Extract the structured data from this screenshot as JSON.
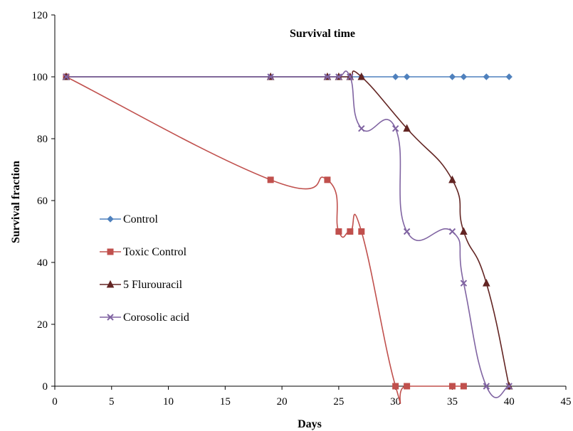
{
  "chart_data": {
    "type": "line",
    "title": "Survival time",
    "xlabel": "Days",
    "ylabel": "Survival fraction",
    "xlim": [
      0,
      45
    ],
    "ylim": [
      0,
      120
    ],
    "x_ticks": [
      0,
      5,
      10,
      15,
      20,
      25,
      30,
      35,
      40,
      45
    ],
    "y_ticks": [
      0,
      20,
      40,
      60,
      80,
      100,
      120
    ],
    "grid": false,
    "legend_position": "left-center",
    "series": [
      {
        "name": "Control",
        "color": "#4f81bd",
        "marker": "diamond",
        "x": [
          1,
          19,
          24,
          25,
          26,
          27,
          30,
          31,
          35,
          36,
          38,
          40
        ],
        "y": [
          100,
          100,
          100,
          100,
          100,
          100,
          100,
          100,
          100,
          100,
          100,
          100
        ]
      },
      {
        "name": "Toxic Control",
        "color": "#c0504d",
        "marker": "square",
        "x": [
          1,
          19,
          24,
          25,
          26,
          27,
          30,
          31,
          35,
          36
        ],
        "y": [
          100,
          66.7,
          66.7,
          50,
          50,
          50,
          0,
          0,
          0,
          0
        ]
      },
      {
        "name": "5 Flurouracil",
        "color": "#632523",
        "marker": "triangle",
        "x": [
          1,
          19,
          24,
          25,
          26,
          27,
          31,
          35,
          36,
          38,
          40
        ],
        "y": [
          100,
          100,
          100,
          100,
          100,
          100,
          83.3,
          66.7,
          50,
          33.3,
          0
        ]
      },
      {
        "name": "Corosolic acid",
        "color": "#8064a2",
        "marker": "x",
        "x": [
          1,
          19,
          24,
          25,
          26,
          27,
          30,
          31,
          35,
          36,
          38,
          40
        ],
        "y": [
          100,
          100,
          100,
          100,
          100,
          83.3,
          83.3,
          50,
          50,
          33.3,
          0,
          0
        ]
      }
    ]
  }
}
